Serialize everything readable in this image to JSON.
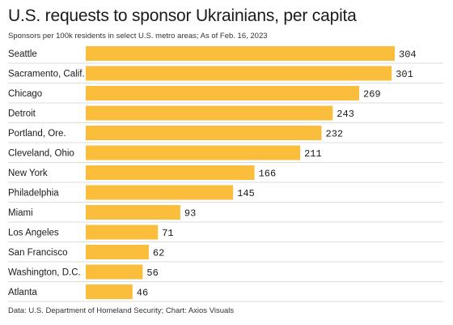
{
  "header": {
    "title": "U.S. requests to sponsor Ukrainians, per capita",
    "subtitle": "Sponsors per 100k residents in select U.S. metro areas; As of Feb. 16, 2023"
  },
  "footer": {
    "source": "Data: U.S. Department of Homeland Security; Chart: Axios Visuals"
  },
  "colors": {
    "bar": "#fbbd3c",
    "gridline": "#dcdcdc"
  },
  "chart_data": {
    "type": "bar",
    "orientation": "horizontal",
    "title": "U.S. requests to sponsor Ukrainians, per capita",
    "subtitle": "Sponsors per 100k residents in select U.S. metro areas; As of Feb. 16, 2023",
    "xlabel": "",
    "ylabel": "",
    "xlim": [
      0,
      304
    ],
    "grid": false,
    "legend": "none",
    "categories": [
      "Seattle",
      "Sacramento, Calif.",
      "Chicago",
      "Detroit",
      "Portland, Ore.",
      "Cleveland, Ohio",
      "New York",
      "Philadelphia",
      "Miami",
      "Los Angeles",
      "San Francisco",
      "Washington, D.C.",
      "Atlanta"
    ],
    "values": [
      304,
      301,
      269,
      243,
      232,
      211,
      166,
      145,
      93,
      71,
      62,
      56,
      46
    ]
  }
}
